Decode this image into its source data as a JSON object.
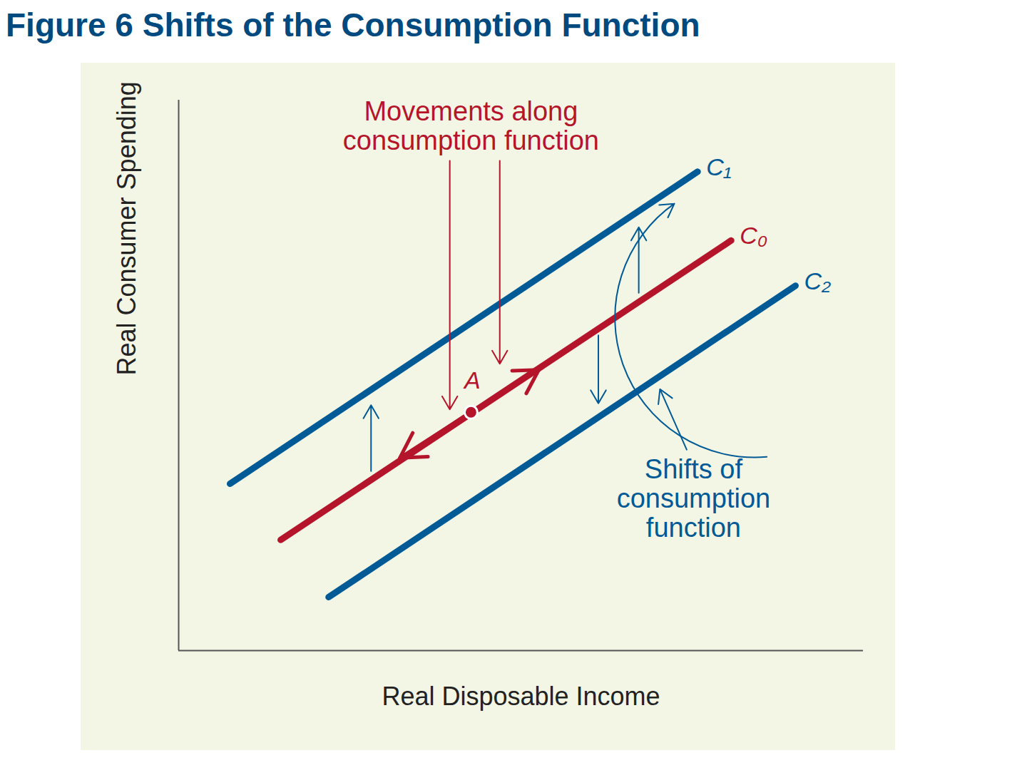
{
  "chart_data": {
    "type": "line",
    "title": "Figure 6 Shifts of the Consumption Function",
    "x_label": "Real Disposable Income",
    "y_label": "Real Consumer Spending",
    "xlim": [
      0,
      100
    ],
    "ylim": [
      0,
      100
    ],
    "xticks": [],
    "yticks": [],
    "tick_labels": false,
    "series": [
      {
        "name": "C₁",
        "color": "#005a96",
        "x": [
          7.5,
          75.8
        ],
        "values": [
          30.3,
          87.0
        ]
      },
      {
        "name": "C₀",
        "color": "#b5152b",
        "x": [
          14.9,
          80.7
        ],
        "values": [
          20.1,
          74.5
        ]
      },
      {
        "name": "C₂",
        "color": "#005a96",
        "x": [
          21.9,
          90.1
        ],
        "values": [
          9.7,
          66.3
        ]
      }
    ],
    "points": [
      {
        "label": "A",
        "x": 42.7,
        "y": 43.3,
        "color": "#b5152b"
      }
    ],
    "annotations": [
      {
        "lines": [
          "Movements along",
          "consumption function"
        ],
        "x": 42.7,
        "y": 95.3,
        "color": "#b5152b"
      },
      {
        "lines": [
          "Shifts of",
          "consumption",
          "function"
        ],
        "x": 75.2,
        "y": 27.7,
        "color": "#005a96"
      }
    ],
    "movement_arrows": [
      {
        "x1": 42.7,
        "y1": 43.3,
        "x2": 52.6,
        "y2": 51.0,
        "color": "#b5152b"
      },
      {
        "x1": 42.7,
        "y1": 43.3,
        "x2": 32.3,
        "y2": 35.0,
        "color": "#b5152b"
      }
    ],
    "pointer_arrows": [
      {
        "x1": 39.6,
        "y1": 89.0,
        "x2": 39.6,
        "y2": 43.8,
        "color": "#b5152b"
      },
      {
        "x1": 46.9,
        "y1": 89.0,
        "x2": 46.9,
        "y2": 52.1,
        "color": "#b5152b"
      },
      {
        "x1": 28.1,
        "y1": 32.6,
        "x2": 28.1,
        "y2": 44.6,
        "color": "#005a96"
      },
      {
        "x1": 67.2,
        "y1": 65.0,
        "x2": 67.2,
        "y2": 76.9,
        "color": "#005a96"
      },
      {
        "x1": 61.3,
        "y1": 57.3,
        "x2": 61.3,
        "y2": 44.9,
        "color": "#005a96"
      },
      {
        "x1": 74.2,
        "y1": 36.5,
        "x2": 70.3,
        "y2": 47.5,
        "color": "#005a96"
      }
    ],
    "curved_arrows": [
      {
        "x1": 85.9,
        "y1": 35.2,
        "x2": 72.4,
        "y2": 81.2,
        "color": "#005a96"
      }
    ]
  }
}
